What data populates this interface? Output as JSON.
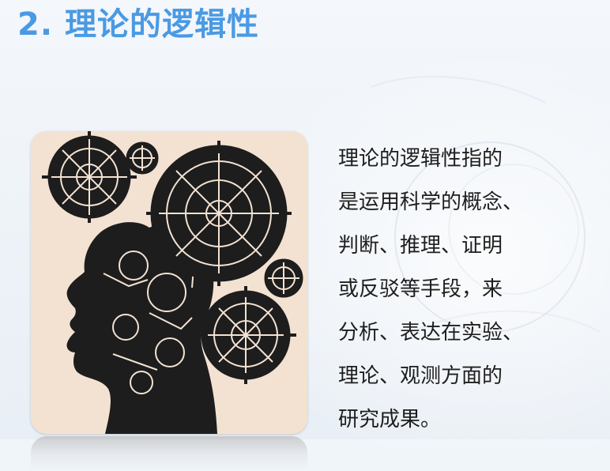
{
  "slide": {
    "title": "2. 理论的逻辑性",
    "body_lines": [
      "理论的逻辑性指的",
      "是运用科学的概念、",
      "判断、推理、证明",
      "或反驳等手段，来",
      "分析、表达在实验、",
      "理论、观测方面的",
      "研究成果。"
    ],
    "colors": {
      "title": "#4a9ae3",
      "text": "#1e1e1e",
      "image_background": "#f3e2d2"
    },
    "image_icon": "gear-head-icon"
  }
}
